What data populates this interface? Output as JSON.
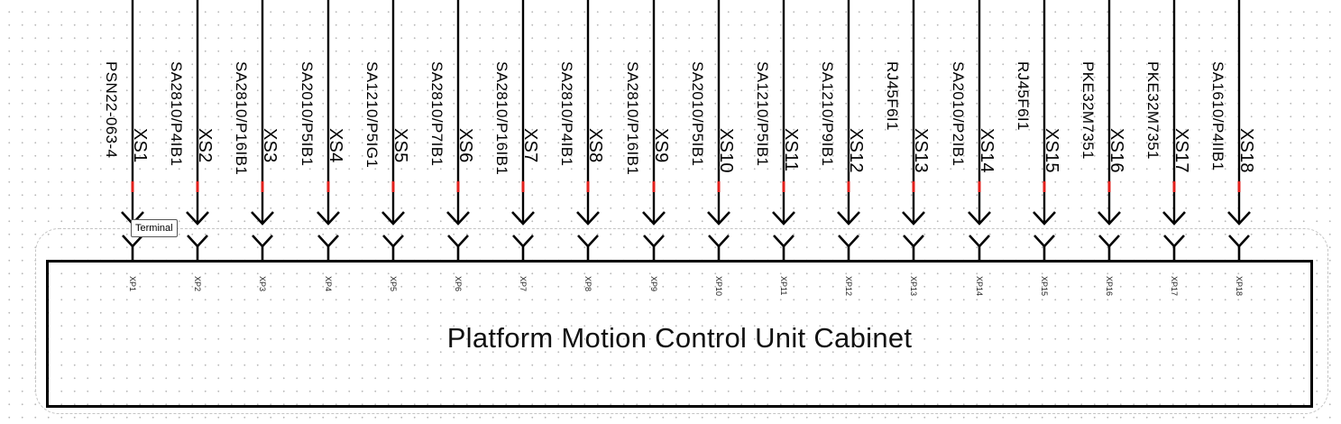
{
  "diagram": {
    "cabinet_title": "Platform Motion Control Unit Cabinet",
    "tooltip": "Terminal",
    "colors": {
      "wire": "#000000",
      "marker": "#e0201c",
      "frame": "#000000",
      "dashed_outline": "#c4c4c4"
    },
    "connectors": [
      {
        "cable": "PSN22-063-4",
        "socket": "XS1",
        "plug": "XP1"
      },
      {
        "cable": "SA2810/P4IB1",
        "socket": "XS2",
        "plug": "XP2"
      },
      {
        "cable": "SA2810/P16IB1",
        "socket": "XS3",
        "plug": "XP3"
      },
      {
        "cable": "SA2010/P5IB1",
        "socket": "XS4",
        "plug": "XP4"
      },
      {
        "cable": "SA1210/P5IG1",
        "socket": "XS5",
        "plug": "XP5"
      },
      {
        "cable": "SA2810/P7IB1",
        "socket": "XS6",
        "plug": "XP6"
      },
      {
        "cable": "SA2810/P16IB1",
        "socket": "XS7",
        "plug": "XP7"
      },
      {
        "cable": "SA2810/P4IB1",
        "socket": "XS8",
        "plug": "XP8"
      },
      {
        "cable": "SA2810/P16IB1",
        "socket": "XS9",
        "plug": "XP9"
      },
      {
        "cable": "SA2010/P5IB1",
        "socket": "XS10",
        "plug": "XP10"
      },
      {
        "cable": "SA1210/P5IB1",
        "socket": "XS11",
        "plug": "XP11"
      },
      {
        "cable": "SA1210/P9IB1",
        "socket": "XS12",
        "plug": "XP12"
      },
      {
        "cable": "RJ45F6I1",
        "socket": "XS13",
        "plug": "XP13"
      },
      {
        "cable": "SA2010/P2IB1",
        "socket": "XS14",
        "plug": "XP14"
      },
      {
        "cable": "RJ45F6I1",
        "socket": "XS15",
        "plug": "XP15"
      },
      {
        "cable": "PKE32M7351",
        "socket": "XS16",
        "plug": "XP16"
      },
      {
        "cable": "PKE32M7351",
        "socket": "XS17",
        "plug": "XP17"
      },
      {
        "cable": "SA1610/P4IIB1",
        "socket": "XS18",
        "plug": "XP18"
      }
    ]
  }
}
